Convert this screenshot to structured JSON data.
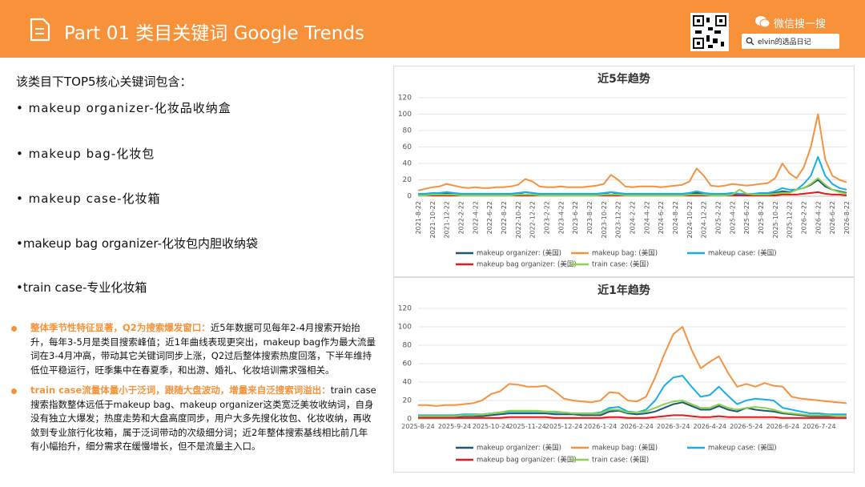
{
  "header": {
    "title": "Part 01 类目关键词 Google Trends",
    "search_label": "微信搜一搜",
    "search_text": "elvin的选品日记"
  },
  "content": {
    "intro": "该类目下TOP5核心关键词包含：",
    "keywords": [
      "• makeup organizer-化妆品收纳盒",
      "• makeup bag-化妆包",
      "• makeup case-化妆箱",
      "•makeup bag organizer-化妆包内胆收纳袋",
      "•train case-专业化妆箱"
    ],
    "notes": [
      {
        "lead": "整体季节性特征显著，Q2为搜索爆发窗口：",
        "text": "近5年数据可见每年2-4月搜索开始抬升，每年3-5月是类目搜索峰值；近1年曲线表现更突出，makeup bag作为最大流量词在3-4月冲高，带动其它关键词同步上涨，Q2过后整体搜索热度回落，下半年维持低位平稳运行，旺季集中在春夏季，和出游、婚礼、化妆培训需求强相关。"
      },
      {
        "lead": "train case流量体量小于泛词，跟随大盘波动，增量来自泛搜索词溢出：",
        "text": "train case搜索指数整体远低于makeup bag、makeup organizer这类宽泛美妆收纳词，自身没有独立大爆发；热度走势和大盘高度同步，用户大多先搜化妆包、化妆收纳，再收敛到专业旅行化妆箱，属于泛词带动的次级细分词；近2年整体搜索基线相比前几年有小幅抬升，细分需求在缓慢增长，但不是流量主入口。"
      }
    ]
  },
  "chart_data": [
    {
      "type": "line",
      "title": "近5年趋势",
      "categories": [
        "2021-8-22",
        null,
        "2021-10-22",
        null,
        "2021-12-22",
        null,
        "2022-2-22",
        null,
        "2022-4-22",
        null,
        "2022-6-22",
        null,
        "2022-8-22",
        null,
        "2022-10-22",
        null,
        "2022-12-22",
        null,
        "2023-2-22",
        null,
        "2023-4-22",
        null,
        "2023-6-22",
        null,
        "2023-8-22",
        null,
        "2023-10-22",
        null,
        "2023-12-22",
        null,
        "2024-2-22",
        null,
        "2024-4-22",
        null,
        "2024-6-22",
        null,
        "2024-8-22",
        null,
        "2024-10-22",
        null,
        "2024-12-22",
        null,
        "2025-2-22",
        null,
        "2025-4-22",
        null,
        "2025-6-22",
        null,
        "2025-8-22",
        null,
        "2025-10-22",
        null,
        "2025-12-22",
        null,
        "2026-2-22",
        null,
        "2026-4-22",
        null,
        "2026-6-22",
        null,
        "2026-8-22"
      ],
      "ylim": [
        0,
        120
      ],
      "yticks": [
        0,
        20,
        40,
        60,
        80,
        100,
        120
      ],
      "series": [
        {
          "name": "makeup organizer: (美国)",
          "color": "#1e5a6c",
          "values": [
            2,
            2,
            3,
            3,
            4,
            3,
            2,
            2,
            2,
            2,
            2,
            2,
            2,
            2,
            3,
            5,
            4,
            2,
            2,
            2,
            2,
            2,
            2,
            2,
            2,
            2,
            3,
            5,
            3,
            2,
            2,
            2,
            2,
            2,
            2,
            2,
            2,
            2,
            3,
            4,
            3,
            2,
            2,
            2,
            3,
            2,
            2,
            2,
            3,
            3,
            4,
            6,
            5,
            8,
            10,
            14,
            20,
            12,
            8,
            6,
            4
          ]
        },
        {
          "name": "makeup bag: (美国)",
          "color": "#f39342",
          "values": [
            7,
            9,
            11,
            12,
            15,
            13,
            11,
            10,
            11,
            10,
            10,
            11,
            11,
            12,
            14,
            21,
            18,
            12,
            11,
            11,
            12,
            11,
            11,
            11,
            12,
            13,
            15,
            26,
            20,
            12,
            11,
            12,
            12,
            12,
            11,
            12,
            13,
            14,
            18,
            34,
            25,
            13,
            12,
            13,
            15,
            14,
            13,
            14,
            15,
            16,
            22,
            40,
            28,
            22,
            35,
            60,
            100,
            45,
            25,
            20,
            17
          ]
        },
        {
          "name": "makeup case: (美国)",
          "color": "#17aee6",
          "values": [
            3,
            3,
            4,
            4,
            5,
            4,
            3,
            3,
            3,
            3,
            3,
            3,
            3,
            3,
            4,
            5,
            4,
            3,
            3,
            3,
            3,
            3,
            3,
            3,
            3,
            3,
            4,
            5,
            4,
            3,
            3,
            3,
            3,
            3,
            3,
            3,
            3,
            3,
            4,
            6,
            4,
            3,
            3,
            3,
            4,
            3,
            3,
            3,
            4,
            4,
            6,
            10,
            8,
            8,
            15,
            25,
            48,
            25,
            15,
            10,
            8
          ]
        },
        {
          "name": "makeup bag organizer: (美国)",
          "color": "#e5191c",
          "values": [
            1,
            1,
            1,
            1,
            1,
            1,
            1,
            1,
            1,
            1,
            1,
            1,
            1,
            1,
            1,
            1,
            1,
            1,
            1,
            1,
            1,
            1,
            1,
            1,
            1,
            1,
            1,
            1,
            1,
            1,
            1,
            1,
            1,
            1,
            1,
            1,
            1,
            1,
            1,
            1,
            1,
            1,
            1,
            1,
            1,
            1,
            1,
            1,
            1,
            1,
            1,
            2,
            2,
            2,
            3,
            4,
            5,
            3,
            2,
            2,
            1
          ]
        },
        {
          "name": "train case: (美国)",
          "color": "#8cd04c",
          "values": [
            1,
            1,
            2,
            2,
            2,
            2,
            1,
            1,
            1,
            1,
            1,
            1,
            1,
            1,
            2,
            2,
            2,
            1,
            1,
            1,
            1,
            1,
            1,
            1,
            1,
            1,
            2,
            2,
            2,
            1,
            1,
            1,
            1,
            1,
            1,
            1,
            1,
            1,
            2,
            2,
            2,
            1,
            1,
            1,
            2,
            8,
            3,
            2,
            2,
            2,
            3,
            4,
            4,
            8,
            10,
            15,
            22,
            14,
            8,
            5,
            3
          ]
        }
      ]
    },
    {
      "type": "line",
      "title": "近1年趋势",
      "categories": [
        "2025-8-24",
        null,
        null,
        null,
        "2025-9-24",
        null,
        null,
        null,
        "2025-10-24",
        null,
        null,
        null,
        "2025-11-24",
        null,
        null,
        null,
        "2025-12-24",
        null,
        null,
        null,
        "2026-1-24",
        null,
        null,
        null,
        "2026-2-24",
        null,
        null,
        null,
        "2026-3-24",
        null,
        null,
        null,
        "2026-4-24",
        null,
        null,
        null,
        "2026-5-24",
        null,
        null,
        null,
        "2026-6-24",
        null,
        null,
        null,
        "2026-7-24",
        null,
        null,
        null
      ],
      "ylim": [
        0,
        120
      ],
      "yticks": [
        0,
        20,
        40,
        60,
        80,
        100,
        120
      ],
      "series": [
        {
          "name": "makeup organizer: (美国)",
          "color": "#1e5a6c",
          "values": [
            2,
            2,
            2,
            2,
            2,
            3,
            3,
            3,
            4,
            5,
            6,
            6,
            6,
            6,
            6,
            5,
            5,
            5,
            4,
            4,
            4,
            8,
            9,
            6,
            5,
            6,
            8,
            12,
            16,
            18,
            14,
            10,
            10,
            14,
            10,
            8,
            12,
            10,
            9,
            8,
            6,
            5,
            4,
            3,
            3,
            3,
            3,
            3
          ]
        },
        {
          "name": "makeup bag: (美国)",
          "color": "#f39342",
          "values": [
            15,
            15,
            14,
            15,
            15,
            16,
            17,
            20,
            27,
            30,
            38,
            37,
            35,
            35,
            36,
            30,
            22,
            20,
            19,
            18,
            20,
            29,
            28,
            20,
            19,
            24,
            45,
            70,
            92,
            100,
            75,
            55,
            62,
            68,
            50,
            35,
            38,
            35,
            39,
            36,
            35,
            24,
            22,
            21,
            20,
            19,
            18,
            17
          ]
        },
        {
          "name": "makeup case: (美国)",
          "color": "#17aee6",
          "values": [
            4,
            4,
            4,
            4,
            4,
            5,
            5,
            5,
            6,
            7,
            8,
            8,
            8,
            8,
            8,
            7,
            7,
            6,
            6,
            6,
            7,
            12,
            13,
            8,
            7,
            10,
            20,
            36,
            45,
            47,
            35,
            24,
            26,
            35,
            25,
            16,
            20,
            22,
            21,
            20,
            12,
            10,
            8,
            6,
            6,
            5,
            5,
            5
          ]
        },
        {
          "name": "makeup bag organizer: (美国)",
          "color": "#e5191c",
          "values": [
            1,
            1,
            1,
            1,
            1,
            1,
            1,
            1,
            1,
            1,
            2,
            2,
            2,
            2,
            2,
            1,
            1,
            1,
            1,
            1,
            1,
            2,
            2,
            1,
            1,
            1,
            2,
            3,
            4,
            4,
            3,
            2,
            2,
            3,
            2,
            2,
            2,
            2,
            2,
            2,
            1,
            1,
            1,
            1,
            1,
            1,
            1,
            1
          ]
        },
        {
          "name": "train case: (美国)",
          "color": "#8cd04c",
          "values": [
            3,
            3,
            3,
            3,
            3,
            4,
            4,
            5,
            6,
            7,
            9,
            9,
            9,
            9,
            8,
            8,
            7,
            6,
            6,
            6,
            6,
            10,
            10,
            7,
            7,
            8,
            12,
            16,
            19,
            20,
            16,
            12,
            12,
            16,
            12,
            10,
            12,
            13,
            12,
            10,
            7,
            6,
            5,
            4,
            4,
            4,
            3,
            3
          ]
        }
      ]
    }
  ]
}
